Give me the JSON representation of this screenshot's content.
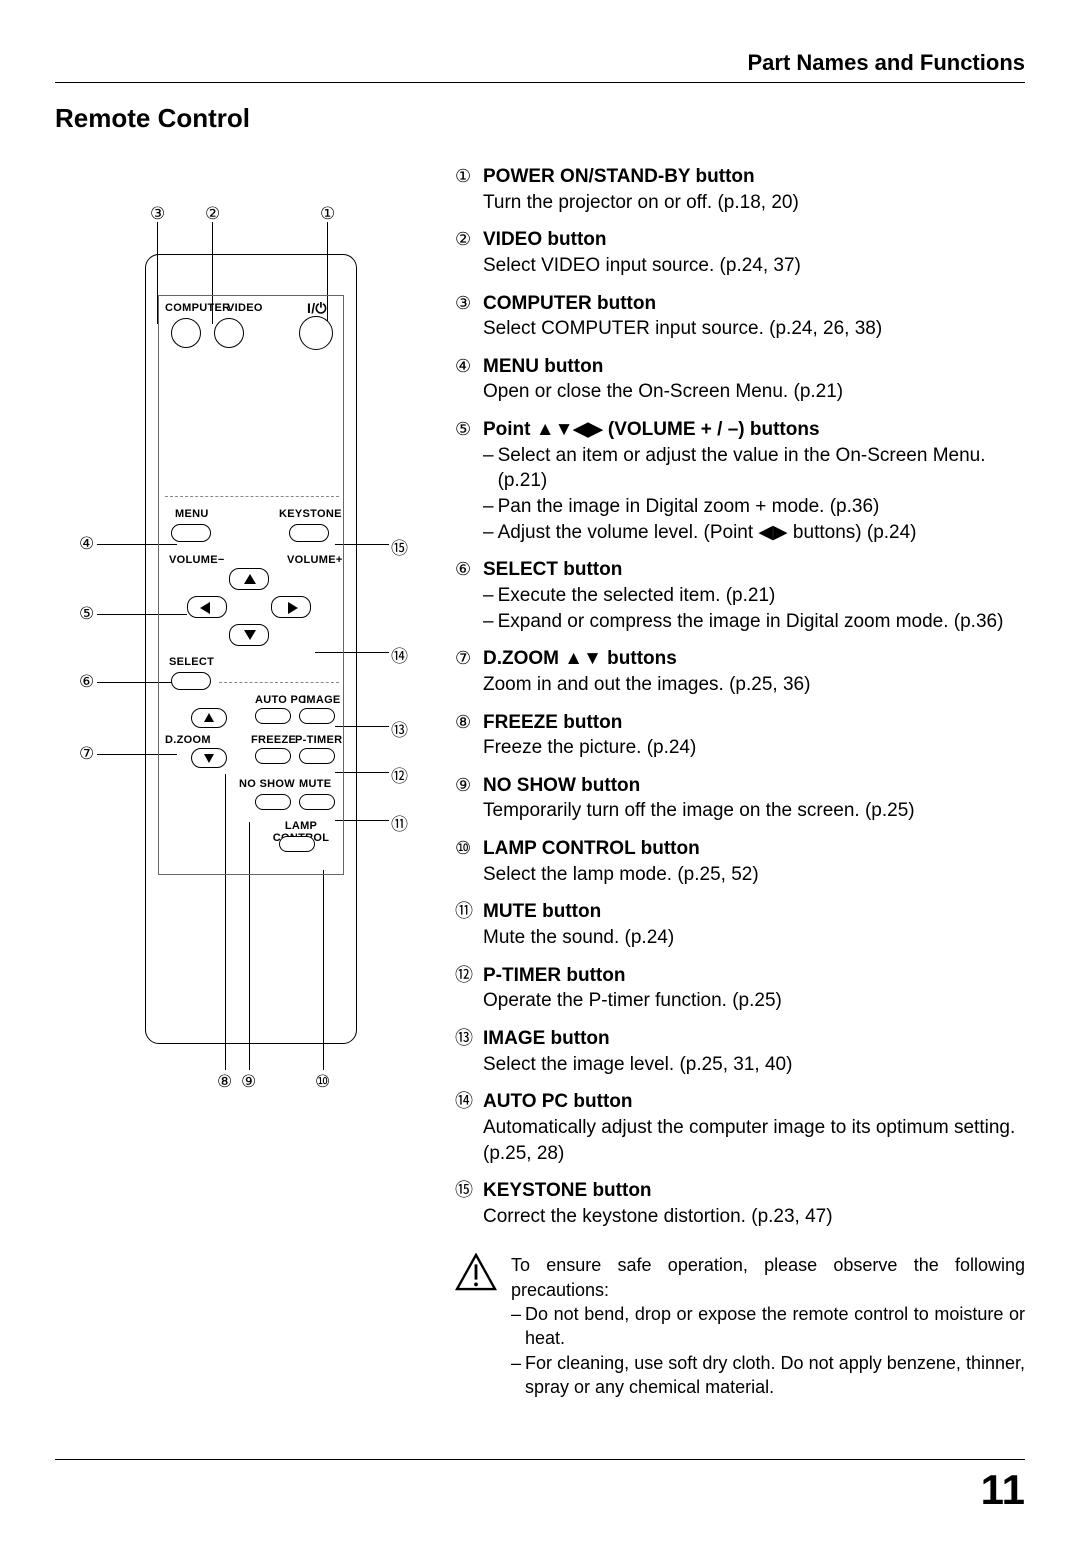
{
  "header": {
    "section": "Part Names and Functions"
  },
  "title": "Remote Control",
  "remote": {
    "labels": {
      "computer": "COMPUTER",
      "video": "VIDEO",
      "power": "I/⏻",
      "menu": "MENU",
      "keystone": "KEYSTONE",
      "vol_minus": "VOLUME−",
      "vol_plus": "VOLUME+",
      "select": "SELECT",
      "autopc": "AUTO PC",
      "image": "IMAGE",
      "dzoom": "D.ZOOM",
      "freeze": "FREEZE",
      "ptimer": "P-TIMER",
      "noshow": "NO SHOW",
      "mute": "MUTE",
      "lamp": "LAMP CONTROL"
    },
    "callouts_top": [
      "③",
      "②",
      "①"
    ],
    "callouts_left": [
      "④",
      "⑤",
      "⑥",
      "⑦"
    ],
    "callouts_right": [
      "⑮",
      "⑭",
      "⑬",
      "⑫",
      "⑪"
    ],
    "callouts_bottom": [
      "⑧",
      "⑨",
      "⑩"
    ]
  },
  "items": [
    {
      "num": "①",
      "title": "POWER ON/STAND-BY button",
      "desc": "Turn the projector on or off. (p.18, 20)"
    },
    {
      "num": "②",
      "title": "VIDEO button",
      "desc": "Select VIDEO input source. (p.24, 37)"
    },
    {
      "num": "③",
      "title": "COMPUTER button",
      "desc": "Select COMPUTER input source. (p.24, 26, 38)"
    },
    {
      "num": "④",
      "title": "MENU button",
      "desc": "Open or close the On-Screen Menu. (p.21)"
    },
    {
      "num": "⑤",
      "title": "Point ▲▼◀▶ (VOLUME + / –) buttons",
      "subs": [
        "Select an item or adjust the value in the On-Screen Menu. (p.21)",
        "Pan the image in Digital zoom + mode. (p.36)",
        "Adjust the volume level. (Point ◀▶ buttons) (p.24)"
      ]
    },
    {
      "num": "⑥",
      "title": "SELECT button",
      "subs": [
        "Execute the selected item. (p.21)",
        "Expand or compress the image in Digital zoom mode. (p.36)"
      ]
    },
    {
      "num": "⑦",
      "title": "D.ZOOM ▲▼ buttons",
      "desc": "Zoom in and out the images. (p.25, 36)"
    },
    {
      "num": "⑧",
      "title": "FREEZE button",
      "desc": "Freeze the picture. (p.24)"
    },
    {
      "num": "⑨",
      "title": "NO SHOW button",
      "desc": "Temporarily turn off the image on the screen. (p.25)"
    },
    {
      "num": "⑩",
      "title": "LAMP CONTROL button",
      "desc": "Select the lamp mode. (p.25, 52)"
    },
    {
      "num": "⑪",
      "title": "MUTE button",
      "desc": "Mute the sound. (p.24)"
    },
    {
      "num": "⑫",
      "title": "P-TIMER button",
      "desc": "Operate the P-timer function. (p.25)"
    },
    {
      "num": "⑬",
      "title": "IMAGE button",
      "desc": "Select the image level. (p.25, 31, 40)"
    },
    {
      "num": "⑭",
      "title": "AUTO PC button",
      "desc": "Automatically adjust the computer image to its optimum setting. (p.25, 28)"
    },
    {
      "num": "⑮",
      "title": "KEYSTONE button",
      "desc": "Correct the keystone distortion. (p.23, 47)"
    }
  ],
  "warning": {
    "intro": "To ensure safe operation, please observe the following precautions:",
    "subs": [
      "Do not bend, drop or expose the remote control to moisture or heat.",
      "For cleaning, use soft dry cloth. Do not apply benzene, thinner, spray or any chemical material."
    ]
  },
  "page_number": "11"
}
